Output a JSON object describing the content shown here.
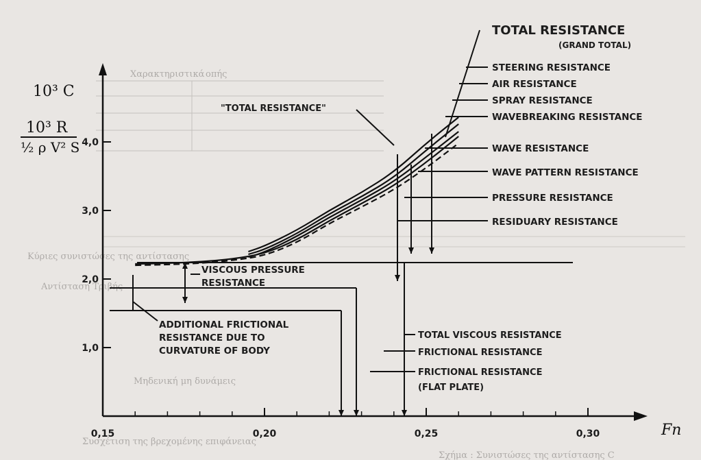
{
  "chart_data": {
    "type": "line",
    "xlabel": "Fn",
    "ylabel_top": "10³ C",
    "ylabel_frac_num": "10³ R",
    "ylabel_frac_den": "½ ρ V² S",
    "xlim": [
      0.15,
      0.31
    ],
    "ylim": [
      0,
      4.4
    ],
    "x_ticks": [
      {
        "v": 0.15,
        "label": "0,15"
      },
      {
        "v": 0.2,
        "label": "0,20"
      },
      {
        "v": 0.25,
        "label": "0,25"
      },
      {
        "v": 0.3,
        "label": "0,30"
      }
    ],
    "y_ticks": [
      {
        "v": 1.0,
        "label": "1,0"
      },
      {
        "v": 2.0,
        "label": "2,0"
      },
      {
        "v": 3.0,
        "label": "3,0"
      },
      {
        "v": 4.0,
        "label": "4,0"
      }
    ],
    "x_minor": [
      0.16,
      0.17,
      0.18,
      0.19,
      0.21,
      0.22,
      0.23,
      0.24,
      0.26,
      0.27,
      0.28,
      0.29
    ],
    "grid": false,
    "levels": {
      "flat_plate_friction": 1.4,
      "frictional": 1.55,
      "total_viscous": 2.0
    },
    "series": [
      {
        "style": "solid",
        "x": [
          0.195,
          0.2,
          0.21,
          0.22,
          0.23,
          0.24,
          0.25,
          0.26
        ],
        "y": [
          2.4,
          2.48,
          2.71,
          3.0,
          3.26,
          3.56,
          3.98,
          4.36
        ]
      },
      {
        "style": "solid",
        "x": [
          0.195,
          0.2,
          0.21,
          0.22,
          0.23,
          0.24,
          0.25,
          0.26
        ],
        "y": [
          2.36,
          2.43,
          2.66,
          2.95,
          3.2,
          3.48,
          3.88,
          4.26
        ]
      },
      {
        "style": "solid",
        "x": [
          0.195,
          0.2,
          0.21,
          0.22,
          0.23,
          0.24,
          0.25,
          0.26
        ],
        "y": [
          2.32,
          2.39,
          2.62,
          2.9,
          3.15,
          3.42,
          3.78,
          4.15
        ]
      },
      {
        "style": "solid",
        "x": [
          0.16,
          0.17,
          0.18,
          0.19,
          0.2,
          0.21,
          0.22,
          0.23,
          0.24,
          0.25,
          0.26
        ],
        "y": [
          2.22,
          2.23,
          2.25,
          2.29,
          2.37,
          2.57,
          2.85,
          3.1,
          3.36,
          3.7,
          4.08
        ]
      },
      {
        "style": "dashed",
        "x": [
          0.16,
          0.17,
          0.18,
          0.19,
          0.2,
          0.21,
          0.22,
          0.23,
          0.24,
          0.25,
          0.26
        ],
        "y": [
          2.2,
          2.21,
          2.23,
          2.27,
          2.34,
          2.53,
          2.81,
          3.05,
          3.3,
          3.62,
          3.98
        ]
      }
    ],
    "labels_right": [
      {
        "text": "TOTAL RESISTANCE",
        "big": true
      },
      {
        "text": "(GRAND TOTAL)"
      },
      {
        "text": "STEERING  RESISTANCE"
      },
      {
        "text": "AIR RESISTANCE"
      },
      {
        "text": "SPRAY  RESISTANCE"
      },
      {
        "text": "WAVEBREAKING RESISTANCE"
      },
      {
        "text": "WAVE  RESISTANCE"
      },
      {
        "text": "WAVE  PATTERN  RESISTANCE"
      },
      {
        "text": "PRESSURE  RESISTANCE"
      },
      {
        "text": "RESIDUARY  RESISTANCE"
      }
    ],
    "annotations": {
      "total_resistance_quoted": "\"TOTAL RESISTANCE\"",
      "viscous_pressure_1": "VISCOUS  PRESSURE",
      "viscous_pressure_2": "RESISTANCE",
      "additional_1": "ADDITIONAL FRICTIONAL",
      "additional_2": "RESISTANCE  DUE  TO",
      "additional_3": "CURVATURE  OF  BODY",
      "total_viscous": "TOTAL VISCOUS RESISTANCE",
      "frictional": "FRICTIONAL RESISTANCE",
      "frictional_fp_1": "FRICTIONAL RESISTANCE",
      "frictional_fp_2": "(FLAT PLATE)"
    }
  },
  "background_text": {
    "table_1": "Χαρακτηριστικά",
    "table_2": "οπής",
    "row_1": "Κύριες συνιστώσες της αντίστασης",
    "row_2": "Αντίσταση Τριβής",
    "row_3": "Μηδενική μη δυνάμεις",
    "row_4": "Συσχέτιση της βρεχομένης επιφάνειας",
    "caption": "Σχήμα : Συνιστώσες της αντίστασης C"
  }
}
